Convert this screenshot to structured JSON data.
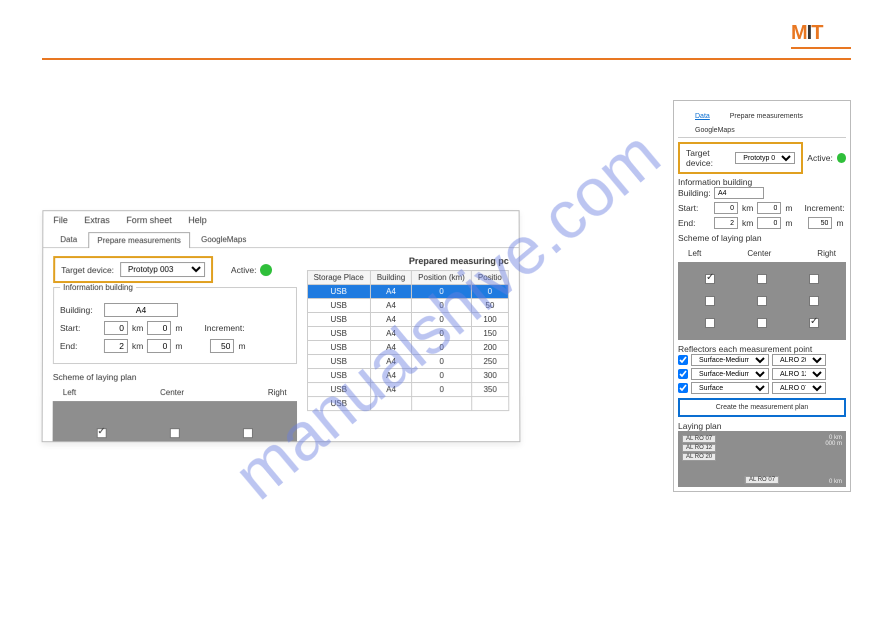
{
  "logo": {
    "text": "MIT",
    "accent": "#e87722",
    "brand_black": "#333333"
  },
  "watermark": "manualshive.com",
  "menu": {
    "items": [
      "File",
      "Extras",
      "Form sheet",
      "Help"
    ]
  },
  "tabs": {
    "items": [
      "Data",
      "Prepare measurements",
      "GoogleMaps"
    ],
    "active_index": 1
  },
  "target": {
    "label": "Target device:",
    "value": "Prototyp 003",
    "active_label": "Active:"
  },
  "info": {
    "legend": "Information building",
    "building_label": "Building:",
    "building": "A4",
    "start_label": "Start:",
    "start_km": "0",
    "start_m": "0",
    "end_label": "End:",
    "end_km": "2",
    "end_m": "0",
    "km": "km",
    "m": "m",
    "increment_label": "Increment:",
    "increment": "50"
  },
  "scheme": {
    "legend": "Scheme of laying plan",
    "cols": [
      "Left",
      "Center",
      "Right"
    ],
    "checks_left": [
      [
        true,
        false,
        false
      ],
      [
        false,
        true,
        false
      ]
    ],
    "checks_right": [
      [
        true,
        false,
        false
      ],
      [
        false,
        false,
        false
      ],
      [
        false,
        false,
        true
      ]
    ]
  },
  "table": {
    "title": "Prepared measuring pc",
    "cols": [
      "Storage Place",
      "Building",
      "Position (km)",
      "Positio"
    ],
    "rows": [
      [
        "USB",
        "A4",
        "0",
        "0"
      ],
      [
        "USB",
        "A4",
        "0",
        "50"
      ],
      [
        "USB",
        "A4",
        "0",
        "100"
      ],
      [
        "USB",
        "A4",
        "0",
        "150"
      ],
      [
        "USB",
        "A4",
        "0",
        "200"
      ],
      [
        "USB",
        "A4",
        "0",
        "250"
      ],
      [
        "USB",
        "A4",
        "0",
        "300"
      ],
      [
        "USB",
        "A4",
        "0",
        "350"
      ],
      [
        "USB",
        "",
        "",
        ""
      ]
    ],
    "selected_row": 0
  },
  "reflectors": {
    "legend": "Reflectors each measurement point",
    "rows": [
      {
        "checked": true,
        "type": "Surface-Medium-Bi",
        "code": "ALRO 20"
      },
      {
        "checked": true,
        "type": "Surface-Medium",
        "code": "ALRO 12"
      },
      {
        "checked": true,
        "type": "Surface",
        "code": "ALRO 07"
      }
    ]
  },
  "create_btn": "Create the measurement plan",
  "laying": {
    "legend": "Laying plan",
    "tags": [
      "AL RO 07",
      "AL RO 12",
      "AL RO 20"
    ],
    "top_right_a": "0 km",
    "top_right_b": "000 m",
    "bottom_tag": "AL RO 07",
    "bottom_right": "0 km"
  },
  "colors": {
    "highlight": "#e0a020",
    "select_row": "#1f7be0",
    "scheme_bg": "#8e8e8e",
    "active": "#2fbf3a"
  }
}
